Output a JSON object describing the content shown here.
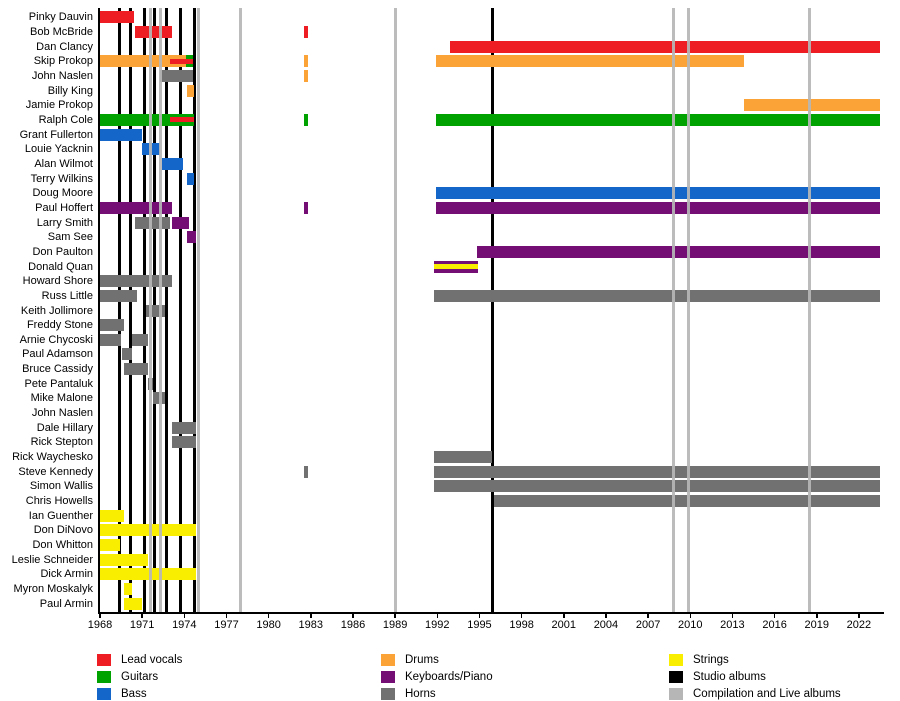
{
  "chart_data": {
    "type": "bar",
    "variant": "band-membership-timeline-gantt",
    "title": "",
    "xlabel": "",
    "ylabel": "",
    "x_axis": {
      "start_year": 1968,
      "end_year": 2023.5,
      "tick_years": [
        1968,
        1971,
        1974,
        1977,
        1980,
        1983,
        1986,
        1989,
        1992,
        1995,
        1998,
        2001,
        2004,
        2007,
        2010,
        2013,
        2016,
        2019,
        2022
      ]
    },
    "roles": {
      "lead_vocals": {
        "label": "Lead vocals",
        "color": "#ee1c23"
      },
      "guitars": {
        "label": "Guitars",
        "color": "#00a200"
      },
      "bass": {
        "label": "Bass",
        "color": "#1466c8"
      },
      "drums": {
        "label": "Drums",
        "color": "#fba337"
      },
      "keyboards": {
        "label": "Keyboards/Piano",
        "color": "#740d74"
      },
      "horns": {
        "label": "Horns",
        "color": "#717171"
      },
      "strings": {
        "label": "Strings",
        "color": "#f9ee00"
      },
      "studio_albums": {
        "label": "Studio albums",
        "color": "#000000"
      },
      "comp_live_albums": {
        "label": "Compilation and Live albums",
        "color": "#b6b6b6"
      }
    },
    "legend_columns": [
      [
        "lead_vocals",
        "guitars",
        "bass"
      ],
      [
        "drums",
        "keyboards",
        "horns"
      ],
      [
        "strings",
        "studio_albums",
        "comp_live_albums"
      ]
    ],
    "album_lines": {
      "studio": [
        1969.4,
        1970.2,
        1971.2,
        1971.9,
        1972.7,
        1973.7,
        1974.7,
        1995.9
      ],
      "compilation_live": [
        1971.6,
        1972.3,
        1975.0,
        1978.0,
        1989.0,
        2008.8,
        2009.9,
        2018.5
      ]
    },
    "members": [
      {
        "name": "Pinky Dauvin",
        "segments": [
          {
            "role": "lead_vocals",
            "start": 1968,
            "end": 1970.4
          }
        ]
      },
      {
        "name": "Bob McBride",
        "segments": [
          {
            "role": "lead_vocals",
            "start": 1970.5,
            "end": 1973.1
          },
          {
            "role": "lead_vocals",
            "start": 1982.5,
            "end": 1982.8
          }
        ]
      },
      {
        "name": "Dan Clancy",
        "segments": [
          {
            "role": "lead_vocals",
            "start": 1992.9,
            "end": 2023.5
          }
        ]
      },
      {
        "name": "Skip Prokop",
        "segments": [
          {
            "role": "drums",
            "start": 1968,
            "end": 1974.6
          },
          {
            "role": "guitars",
            "start": 1974.1,
            "end": 1974.6
          },
          {
            "role": "lead_vocals",
            "start": 1973.0,
            "end": 1974.6,
            "stripe": true
          },
          {
            "role": "drums",
            "start": 1982.5,
            "end": 1982.8
          },
          {
            "role": "drums",
            "start": 1991.9,
            "end": 2013.8
          }
        ]
      },
      {
        "name": "John Naslen",
        "segments": [
          {
            "role": "horns",
            "start": 1972.3,
            "end": 1974.6
          },
          {
            "role": "drums",
            "start": 1982.5,
            "end": 1982.8
          }
        ]
      },
      {
        "name": "Billy King",
        "segments": [
          {
            "role": "drums",
            "start": 1974.2,
            "end": 1974.7
          }
        ]
      },
      {
        "name": "Jamie Prokop",
        "segments": [
          {
            "role": "drums",
            "start": 2013.8,
            "end": 2023.5
          }
        ]
      },
      {
        "name": "Ralph Cole",
        "segments": [
          {
            "role": "guitars",
            "start": 1968,
            "end": 1974.7
          },
          {
            "role": "lead_vocals",
            "start": 1973.0,
            "end": 1974.7,
            "stripe": true
          },
          {
            "role": "guitars",
            "start": 1982.5,
            "end": 1982.8
          },
          {
            "role": "guitars",
            "start": 1991.9,
            "end": 2023.5
          }
        ]
      },
      {
        "name": "Grant Fullerton",
        "segments": [
          {
            "role": "bass",
            "start": 1968,
            "end": 1971.0
          }
        ]
      },
      {
        "name": "Louie Yacknin",
        "segments": [
          {
            "role": "bass",
            "start": 1971.0,
            "end": 1972.3
          }
        ]
      },
      {
        "name": "Alan Wilmot",
        "segments": [
          {
            "role": "bass",
            "start": 1972.4,
            "end": 1973.9
          }
        ]
      },
      {
        "name": "Terry Wilkins",
        "segments": [
          {
            "role": "bass",
            "start": 1974.2,
            "end": 1974.7
          }
        ]
      },
      {
        "name": "Doug Moore",
        "segments": [
          {
            "role": "bass",
            "start": 1991.9,
            "end": 2023.5
          }
        ]
      },
      {
        "name": "Paul Hoffert",
        "segments": [
          {
            "role": "keyboards",
            "start": 1968,
            "end": 1973.1
          },
          {
            "role": "keyboards",
            "start": 1982.5,
            "end": 1982.8
          },
          {
            "role": "keyboards",
            "start": 1991.9,
            "end": 2023.5
          }
        ]
      },
      {
        "name": "Larry Smith",
        "segments": [
          {
            "role": "horns",
            "start": 1970.5,
            "end": 1973.0
          },
          {
            "role": "keyboards",
            "start": 1973.1,
            "end": 1974.3
          }
        ]
      },
      {
        "name": "Sam See",
        "segments": [
          {
            "role": "keyboards",
            "start": 1974.2,
            "end": 1974.8
          }
        ]
      },
      {
        "name": "Don Paulton",
        "segments": [
          {
            "role": "keyboards",
            "start": 1994.8,
            "end": 2023.5
          }
        ]
      },
      {
        "name": "Donald Quan",
        "segments": [
          {
            "role": "keyboards",
            "start": 1991.8,
            "end": 1994.9
          },
          {
            "role": "strings",
            "start": 1991.8,
            "end": 1994.9,
            "stripe": true
          }
        ]
      },
      {
        "name": "Howard Shore",
        "segments": [
          {
            "role": "horns",
            "start": 1968,
            "end": 1973.1
          }
        ]
      },
      {
        "name": "Russ Little",
        "segments": [
          {
            "role": "horns",
            "start": 1968,
            "end": 1970.6
          },
          {
            "role": "horns",
            "start": 1991.8,
            "end": 2023.5
          }
        ]
      },
      {
        "name": "Keith Jollimore",
        "segments": [
          {
            "role": "horns",
            "start": 1971.3,
            "end": 1972.6
          }
        ]
      },
      {
        "name": "Freddy Stone",
        "segments": [
          {
            "role": "horns",
            "start": 1968,
            "end": 1969.7
          }
        ]
      },
      {
        "name": "Arnie Chycoski",
        "segments": [
          {
            "role": "horns",
            "start": 1968,
            "end": 1969.5
          },
          {
            "role": "horns",
            "start": 1970.3,
            "end": 1971.4
          }
        ]
      },
      {
        "name": "Paul Adamson",
        "segments": [
          {
            "role": "horns",
            "start": 1969.6,
            "end": 1970.3
          }
        ]
      },
      {
        "name": "Bruce Cassidy",
        "segments": [
          {
            "role": "horns",
            "start": 1969.7,
            "end": 1971.4
          }
        ]
      },
      {
        "name": "Pete Pantaluk",
        "segments": [
          {
            "role": "horns",
            "start": 1971.4,
            "end": 1971.8
          }
        ]
      },
      {
        "name": "Mike Malone",
        "segments": [
          {
            "role": "horns",
            "start": 1971.8,
            "end": 1972.6
          }
        ]
      },
      {
        "name": "John Naslen",
        "segments": []
      },
      {
        "name": "Dale Hillary",
        "segments": [
          {
            "role": "horns",
            "start": 1973.1,
            "end": 1974.8
          }
        ]
      },
      {
        "name": "Rick Stepton",
        "segments": [
          {
            "role": "horns",
            "start": 1973.1,
            "end": 1974.8
          }
        ]
      },
      {
        "name": "Rick Waychesko",
        "segments": [
          {
            "role": "horns",
            "start": 1991.8,
            "end": 1995.9
          }
        ]
      },
      {
        "name": "Steve Kennedy",
        "segments": [
          {
            "role": "horns",
            "start": 1982.5,
            "end": 1982.8
          },
          {
            "role": "horns",
            "start": 1991.8,
            "end": 2023.5
          }
        ]
      },
      {
        "name": "Simon Wallis",
        "segments": [
          {
            "role": "horns",
            "start": 1991.8,
            "end": 2023.5
          }
        ]
      },
      {
        "name": "Chris Howells",
        "segments": [
          {
            "role": "horns",
            "start": 1996.0,
            "end": 2023.5
          }
        ]
      },
      {
        "name": "Ian Guenther",
        "segments": [
          {
            "role": "strings",
            "start": 1968,
            "end": 1969.7
          }
        ]
      },
      {
        "name": "Don DiNovo",
        "segments": [
          {
            "role": "strings",
            "start": 1968,
            "end": 1974.8
          }
        ]
      },
      {
        "name": "Don Whitton",
        "segments": [
          {
            "role": "strings",
            "start": 1968,
            "end": 1969.4
          }
        ]
      },
      {
        "name": "Leslie Schneider",
        "segments": [
          {
            "role": "strings",
            "start": 1968,
            "end": 1971.4
          }
        ]
      },
      {
        "name": "Dick Armin",
        "segments": [
          {
            "role": "strings",
            "start": 1968,
            "end": 1974.8
          }
        ]
      },
      {
        "name": "Myron Moskalyk",
        "segments": [
          {
            "role": "strings",
            "start": 1969.7,
            "end": 1970.3
          }
        ]
      },
      {
        "name": "Paul Armin",
        "segments": [
          {
            "role": "strings",
            "start": 1969.7,
            "end": 1971.0
          }
        ]
      }
    ]
  }
}
